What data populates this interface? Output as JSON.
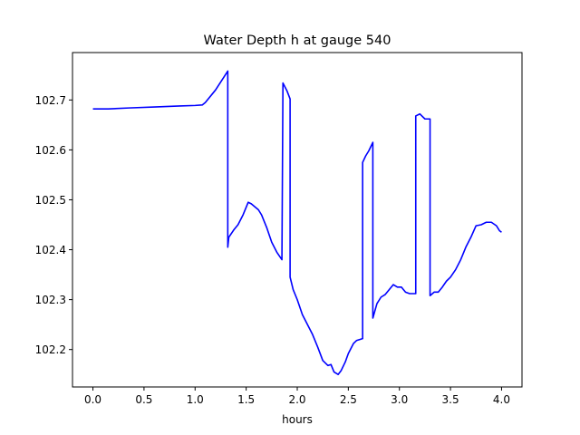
{
  "chart_data": {
    "type": "line",
    "title": "Water Depth h at gauge 540",
    "xlabel": "hours",
    "ylabel": "",
    "xlim": [
      -0.2,
      4.2
    ],
    "ylim": [
      102.125,
      102.795
    ],
    "xticks": [
      0.0,
      0.5,
      1.0,
      1.5,
      2.0,
      2.5,
      3.0,
      3.5,
      4.0
    ],
    "xtick_labels": [
      "0.0",
      "0.5",
      "1.0",
      "1.5",
      "2.0",
      "2.5",
      "3.0",
      "3.5",
      "4.0"
    ],
    "yticks": [
      102.2,
      102.3,
      102.4,
      102.5,
      102.6,
      102.7
    ],
    "ytick_labels": [
      "102.2",
      "102.3",
      "102.4",
      "102.5",
      "102.6",
      "102.7"
    ],
    "grid": false,
    "legend": "none",
    "series": [
      {
        "color": "#0000ff",
        "x": [
          0.0,
          0.15,
          0.35,
          0.6,
          0.85,
          1.0,
          1.07,
          1.1,
          1.2,
          1.32,
          1.32,
          1.33,
          1.38,
          1.42,
          1.47,
          1.52,
          1.55,
          1.62,
          1.65,
          1.7,
          1.75,
          1.8,
          1.85,
          1.86,
          1.86,
          1.9,
          1.93,
          1.93,
          1.96,
          2.0,
          2.05,
          2.1,
          2.15,
          2.2,
          2.25,
          2.3,
          2.33,
          2.36,
          2.4,
          2.43,
          2.47,
          2.5,
          2.55,
          2.58,
          2.64,
          2.64,
          2.67,
          2.7,
          2.74,
          2.74,
          2.78,
          2.82,
          2.86,
          2.9,
          2.94,
          2.98,
          3.02,
          3.06,
          3.1,
          3.16,
          3.16,
          3.2,
          3.25,
          3.3,
          3.3,
          3.34,
          3.38,
          3.42,
          3.46,
          3.5,
          3.55,
          3.6,
          3.65,
          3.7,
          3.75,
          3.8,
          3.85,
          3.9,
          3.95,
          3.98,
          4.0
        ],
        "y": [
          102.682,
          102.682,
          102.684,
          102.686,
          102.688,
          102.689,
          102.69,
          102.695,
          102.72,
          102.758,
          102.405,
          102.425,
          102.44,
          102.45,
          102.47,
          102.495,
          102.492,
          102.48,
          102.47,
          102.445,
          102.415,
          102.395,
          102.38,
          102.734,
          102.734,
          102.718,
          102.702,
          102.345,
          102.32,
          102.3,
          102.27,
          102.25,
          102.23,
          102.205,
          102.178,
          102.168,
          102.17,
          102.155,
          102.15,
          102.158,
          102.175,
          102.192,
          102.212,
          102.218,
          102.222,
          102.575,
          102.588,
          102.598,
          102.615,
          102.263,
          102.292,
          102.305,
          102.31,
          102.32,
          102.33,
          102.325,
          102.325,
          102.315,
          102.312,
          102.312,
          102.668,
          102.672,
          102.662,
          102.662,
          102.308,
          102.315,
          102.315,
          102.325,
          102.337,
          102.345,
          102.36,
          102.38,
          102.405,
          102.425,
          102.448,
          102.45,
          102.455,
          102.455,
          102.448,
          102.438,
          102.435
        ]
      }
    ]
  }
}
